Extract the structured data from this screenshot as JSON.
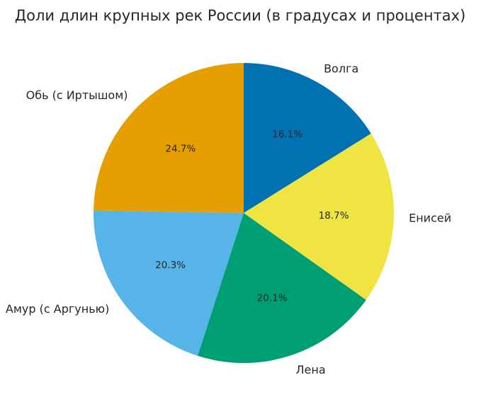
{
  "chart_data": {
    "type": "pie",
    "title": "Доли длин крупных рек России (в градусах и процентах)",
    "start_angle_deg": 90,
    "direction": "clockwise",
    "slices": [
      {
        "label": "Волга",
        "value": 16.1,
        "pct_label": "16.1%",
        "color": "#0072B2"
      },
      {
        "label": "Енисей",
        "value": 18.7,
        "pct_label": "18.7%",
        "color": "#F0E442"
      },
      {
        "label": "Лена",
        "value": 20.1,
        "pct_label": "20.1%",
        "color": "#009E73"
      },
      {
        "label": "Амур (с Аргунью)",
        "value": 20.3,
        "pct_label": "20.3%",
        "color": "#56B4E9"
      },
      {
        "label": "Обь (с Иртышом)",
        "value": 24.7,
        "pct_label": "24.7%",
        "color": "#E69F00"
      }
    ]
  }
}
